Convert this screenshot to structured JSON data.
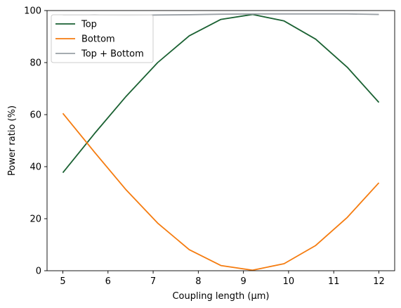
{
  "chart_data": {
    "type": "line",
    "title": "",
    "xlabel": "Coupling length (µm)",
    "ylabel": "Power ratio (%)",
    "xlim": [
      4.65,
      12.35
    ],
    "ylim": [
      0,
      100
    ],
    "xticks": [
      5,
      6,
      7,
      8,
      9,
      10,
      11,
      12
    ],
    "yticks": [
      0,
      20,
      40,
      60,
      80,
      100
    ],
    "grid": false,
    "legend": "top-left",
    "x": [
      5.0,
      5.7,
      6.4,
      7.1,
      7.8,
      8.5,
      9.2,
      9.9,
      10.6,
      11.3,
      12.0
    ],
    "series": [
      {
        "name": "Top",
        "color": "#1a6132",
        "values": [
          37.7,
          52.7,
          67.0,
          80.0,
          90.3,
          96.6,
          98.5,
          96.0,
          89.0,
          78.2,
          64.7
        ]
      },
      {
        "name": "Bottom",
        "color": "#f57c10",
        "values": [
          60.5,
          45.6,
          31.1,
          18.3,
          8.1,
          2.0,
          0.2,
          2.7,
          9.7,
          20.5,
          33.8
        ]
      },
      {
        "name": "Top + Bottom",
        "color": "#9aa0a6",
        "values": [
          98.2,
          98.3,
          98.1,
          98.3,
          98.4,
          98.6,
          98.7,
          98.7,
          98.7,
          98.7,
          98.5
        ]
      }
    ]
  }
}
